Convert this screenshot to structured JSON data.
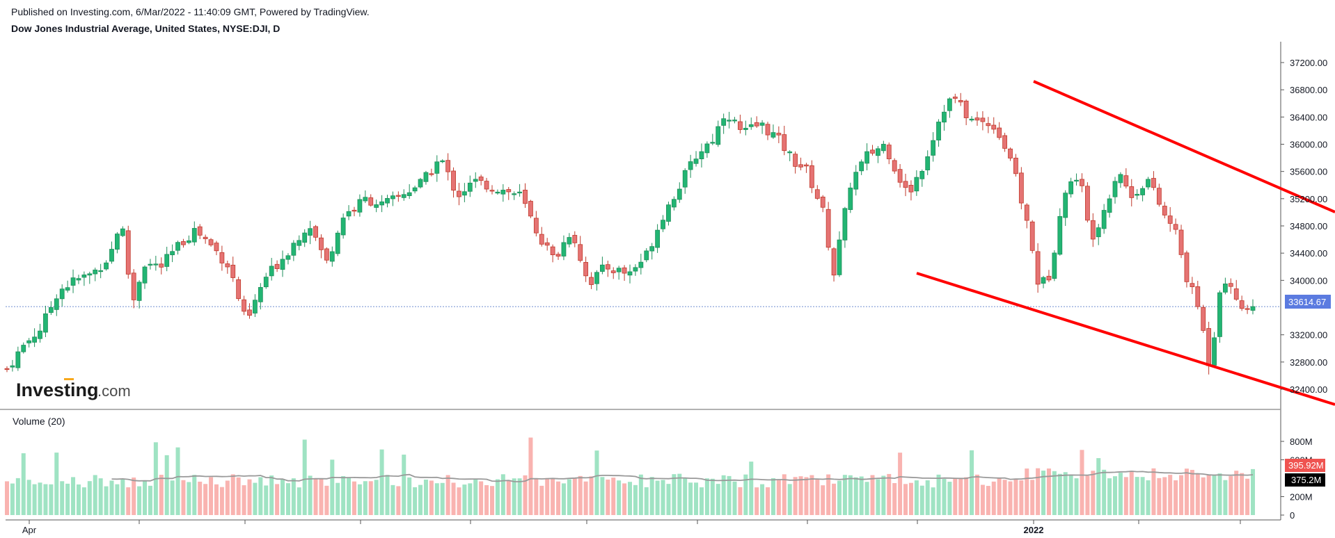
{
  "header": {
    "published": "Published on Investing.com, 6/Mar/2022 - 11:40:09 GMT, Powered by TradingView.",
    "symbol": "Dow Jones Industrial Average, United States, NYSE:DJI, D"
  },
  "watermark": "Investing.com",
  "chart_data": {
    "type": "candlestick",
    "price_axis": {
      "ticks": [
        "37200.00",
        "36800.00",
        "36400.00",
        "36000.00",
        "35600.00",
        "35200.00",
        "34800.00",
        "34400.00",
        "34000.00",
        "33200.00",
        "32800.00",
        "32400.00"
      ],
      "ylim": [
        32200,
        37400
      ],
      "current_price_label": "33614.67",
      "current_price": 33614.67
    },
    "time_axis": {
      "labels": [
        {
          "text": "Apr",
          "bold": false
        },
        {
          "text": "2022",
          "bold": true
        }
      ]
    },
    "colors": {
      "up": "#26a69a",
      "up_fill": "#22b573",
      "down": "#ef5350",
      "down_fill": "#e57373",
      "trend": "#ff0000"
    },
    "anchors": [
      [
        0,
        32700
      ],
      [
        6,
        33050
      ],
      [
        12,
        33300
      ],
      [
        18,
        33850
      ],
      [
        24,
        34000
      ],
      [
        30,
        34100
      ],
      [
        36,
        34350
      ],
      [
        40,
        34900
      ],
      [
        44,
        33650
      ],
      [
        48,
        34250
      ],
      [
        54,
        34200
      ],
      [
        60,
        34500
      ],
      [
        66,
        34750
      ],
      [
        72,
        34500
      ],
      [
        78,
        34200
      ],
      [
        84,
        33350
      ],
      [
        90,
        34000
      ],
      [
        98,
        34400
      ],
      [
        106,
        34850
      ],
      [
        112,
        34250
      ],
      [
        118,
        34950
      ],
      [
        126,
        35200
      ],
      [
        132,
        35100
      ],
      [
        140,
        35300
      ],
      [
        146,
        35450
      ],
      [
        152,
        35800
      ],
      [
        158,
        35250
      ],
      [
        164,
        35450
      ],
      [
        172,
        35350
      ],
      [
        180,
        35250
      ],
      [
        186,
        34700
      ],
      [
        192,
        34300
      ],
      [
        198,
        34750
      ],
      [
        204,
        33950
      ],
      [
        210,
        34200
      ],
      [
        218,
        34100
      ],
      [
        224,
        34350
      ],
      [
        230,
        34950
      ],
      [
        236,
        35400
      ],
      [
        242,
        35850
      ],
      [
        248,
        36100
      ],
      [
        252,
        36500
      ],
      [
        258,
        36150
      ],
      [
        264,
        36300
      ],
      [
        270,
        36100
      ],
      [
        276,
        35750
      ],
      [
        280,
        35650
      ],
      [
        286,
        35050
      ],
      [
        290,
        34100
      ],
      [
        296,
        35450
      ],
      [
        302,
        35850
      ],
      [
        308,
        36000
      ],
      [
        312,
        35600
      ],
      [
        316,
        35250
      ],
      [
        322,
        35750
      ],
      [
        328,
        36500
      ],
      [
        332,
        36700
      ],
      [
        338,
        36350
      ],
      [
        346,
        36300
      ],
      [
        352,
        35800
      ],
      [
        358,
        34800
      ],
      [
        362,
        33900
      ],
      [
        366,
        34100
      ],
      [
        370,
        35200
      ],
      [
        376,
        35600
      ],
      [
        380,
        34600
      ],
      [
        384,
        34950
      ],
      [
        390,
        35650
      ],
      [
        394,
        35200
      ],
      [
        400,
        35500
      ],
      [
        406,
        34950
      ],
      [
        410,
        34700
      ],
      [
        414,
        34000
      ],
      [
        418,
        33600
      ],
      [
        422,
        32700
      ],
      [
        426,
        34100
      ],
      [
        430,
        33800
      ],
      [
        434,
        33600
      ],
      [
        437,
        33560
      ]
    ],
    "volume": {
      "label": "Volume (20)",
      "ticks": [
        "800M",
        "600M",
        "200M",
        "0"
      ],
      "ylim": [
        0,
        840
      ],
      "last_label": "395.92M",
      "ma_label": "375.2M",
      "ma_value": 375.2,
      "last_value": 395.92
    },
    "trendlines": [
      {
        "name": "upper-channel",
        "points": [
          [
            1485,
            117
          ],
          [
            1918,
            305
          ]
        ]
      },
      {
        "name": "lower-channel",
        "points": [
          [
            1317,
            393
          ],
          [
            1918,
            582
          ]
        ]
      }
    ]
  }
}
